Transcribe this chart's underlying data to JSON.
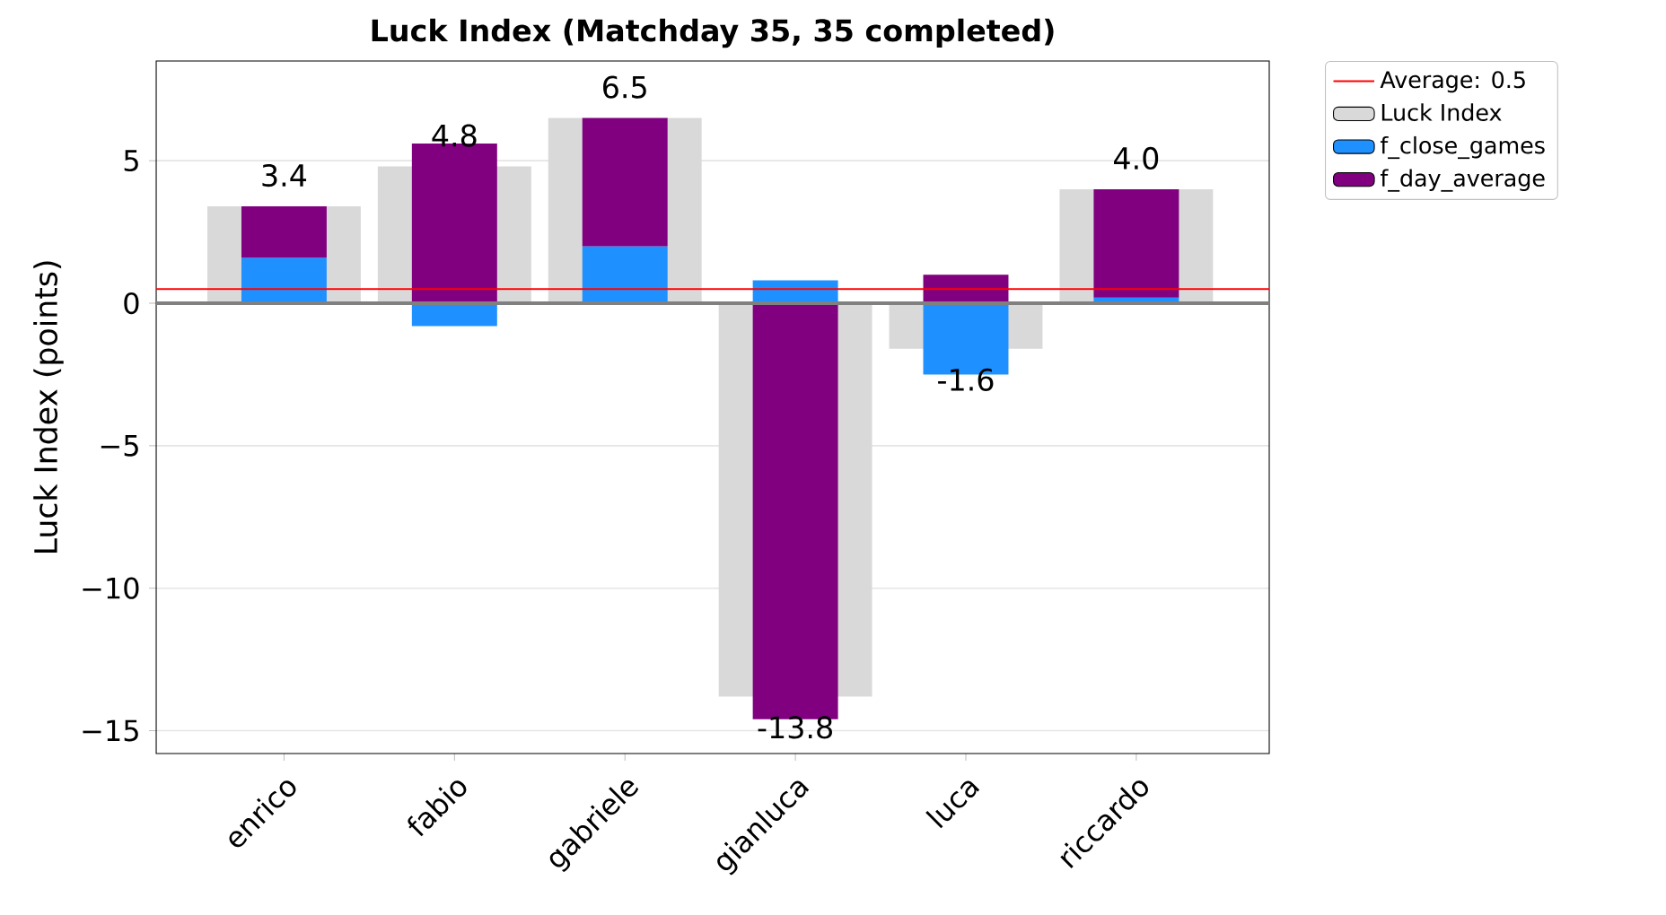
{
  "chart_data": {
    "type": "bar",
    "title": "Luck Index (Matchday 35, 35 completed)",
    "ylabel": "Luck Index (points)",
    "categories": [
      "enrico",
      "fabio",
      "gabriele",
      "gianluca",
      "luca",
      "riccardo"
    ],
    "series": [
      {
        "name": "Luck Index",
        "color": "#d9d9d9",
        "values": [
          3.4,
          4.8,
          6.5,
          -13.8,
          -1.6,
          4.0
        ],
        "value_labels": [
          "3.4",
          "4.8",
          "6.5",
          "-13.8",
          "-1.6",
          "4.0"
        ]
      },
      {
        "name": "f_close_games",
        "color": "#1e90ff",
        "values": [
          1.6,
          -0.8,
          2.0,
          0.8,
          -2.5,
          0.2
        ],
        "base": [
          0,
          0,
          0,
          0,
          0,
          0
        ]
      },
      {
        "name": "f_day_average",
        "color": "#800080",
        "values": [
          1.8,
          5.6,
          4.5,
          -14.6,
          1.0,
          3.8
        ],
        "base": [
          1.6,
          0,
          2.0,
          0,
          0,
          0.2
        ]
      }
    ],
    "ylim": [
      -15.8,
      8.5
    ],
    "yticks": [
      {
        "value": -15,
        "label": "−15"
      },
      {
        "value": -10,
        "label": "−10"
      },
      {
        "value": -5,
        "label": "−5"
      },
      0,
      5
    ],
    "ref_lines": [
      {
        "axis": "y",
        "value": 0.5,
        "label": "Average: 0.5",
        "color": "#ff0000"
      },
      {
        "axis": "y",
        "value": 0,
        "color": "#808080"
      }
    ],
    "grid": "y",
    "legend": "top right"
  }
}
